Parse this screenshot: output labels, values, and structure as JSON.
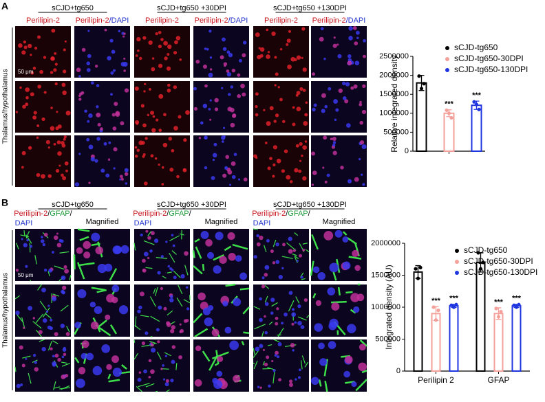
{
  "panel_a": {
    "label": "A",
    "groups": [
      "sCJD+tg650",
      "sCJD+tg650 +30DPI",
      "sCJD+tg650 +130DPI"
    ],
    "stain": [
      [
        "Perilipin-2"
      ],
      [
        "Perilipin-2",
        "/DAPI"
      ]
    ],
    "row_label": "Thalamus/hypothalamus",
    "scale_bar": "50 μm"
  },
  "panel_b": {
    "label": "B",
    "groups": [
      "sCJD+tg650",
      "sCJD+tg650 +30DPI",
      "sCJD+tg650 +130DPI"
    ],
    "stain": [
      [
        "Perilipin-2",
        "/",
        "GFAP",
        "/"
      ],
      [
        "DAPI"
      ]
    ],
    "magnified": "Magnified",
    "row_label": "Thalamus/hypothalamus",
    "scale_bar": "50 μm"
  },
  "chart_data": [
    {
      "type": "bar",
      "y_label": "Relative integrated density",
      "categories": [
        null
      ],
      "ylim": [
        0,
        2500000
      ],
      "yticks": [
        0,
        500000,
        1000000,
        1500000,
        2000000,
        2500000
      ],
      "legend": "upper right",
      "series": [
        {
          "name": "sCJD-tg650",
          "color": "#000000",
          "values": [
            1800000
          ],
          "errors": [
            200000
          ],
          "points": [
            [
              1980000,
              1650000,
              1780000
            ]
          ],
          "significance": [
            null
          ]
        },
        {
          "name": "sCJD-tg650-30DPI",
          "color": "#f4a19b",
          "values": [
            1000000
          ],
          "errors": [
            90000
          ],
          "points": [
            [
              1080000,
              1000000,
              880000
            ]
          ],
          "significance": [
            "***"
          ]
        },
        {
          "name": "sCJD-tg650-130DPI",
          "color": "#1f35e0",
          "values": [
            1210000
          ],
          "errors": [
            110000
          ],
          "points": [
            [
              1300000,
              1230000,
              1100000
            ]
          ],
          "significance": [
            "***"
          ]
        }
      ]
    },
    {
      "type": "bar",
      "y_label": "Integrated density (AU)",
      "categories": [
        "Perilipin 2",
        "GFAP"
      ],
      "ylim": [
        0,
        2000000
      ],
      "yticks": [
        0,
        500000,
        1000000,
        1500000,
        2000000
      ],
      "legend": "upper right",
      "series": [
        {
          "name": "sCJD-tg650",
          "color": "#000000",
          "values": [
            1550000,
            1700000
          ],
          "errors": [
            100000,
            150000
          ],
          "points": [
            [
              1600000,
              1450000,
              1620000
            ],
            [
              1850000,
              1600000,
              1700000
            ]
          ],
          "significance": [
            null,
            null
          ]
        },
        {
          "name": "sCJD-tg650-30DPI",
          "color": "#f4a19b",
          "values": [
            900000,
            900000
          ],
          "errors": [
            110000,
            90000
          ],
          "points": [
            [
              1000000,
              800000,
              950000
            ],
            [
              980000,
              850000,
              930000
            ]
          ],
          "significance": [
            "***",
            "***"
          ]
        },
        {
          "name": "sCJD-tg650-130DPI",
          "color": "#1f35e0",
          "values": [
            1020000,
            1020000
          ],
          "errors": [
            25000,
            25000
          ],
          "points": [
            [
              1030000,
              1000000,
              1040000
            ],
            [
              1030000,
              1000000,
              1040000
            ]
          ],
          "significance": [
            "***",
            "***"
          ]
        }
      ]
    }
  ]
}
